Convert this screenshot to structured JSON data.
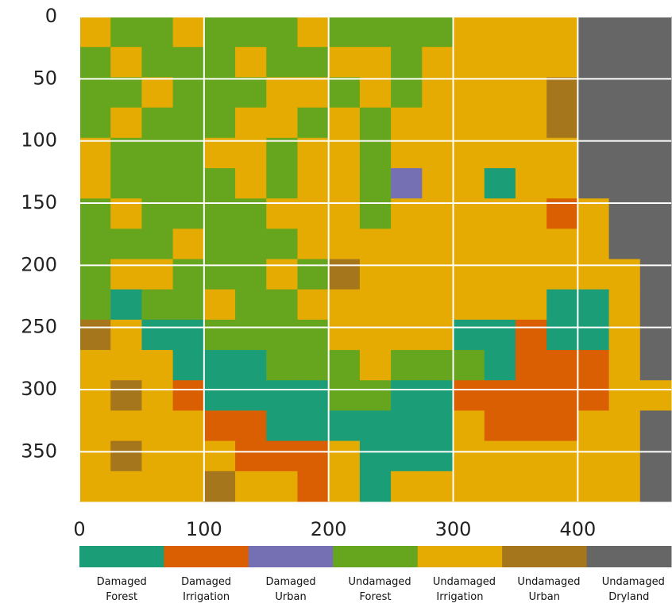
{
  "chart_data": {
    "type": "heatmap",
    "xlim": [
      0,
      475
    ],
    "ylim": [
      390,
      0
    ],
    "xticks": [
      0,
      100,
      200,
      300,
      400
    ],
    "yticks": [
      0,
      50,
      100,
      150,
      200,
      250,
      300,
      350
    ],
    "grid": true,
    "classes": [
      {
        "name": "Damaged Forest",
        "color": "#1b9e77"
      },
      {
        "name": "Damaged Irrigation",
        "color": "#d95f02"
      },
      {
        "name": "Damaged Urban",
        "color": "#7570b3"
      },
      {
        "name": "Undamaged Forest",
        "color": "#66a61e"
      },
      {
        "name": "Undamaged Irrigation",
        "color": "#e6ab02"
      },
      {
        "name": "Undamaged Urban",
        "color": "#a6761d"
      },
      {
        "name": "Undamaged Dryland",
        "color": "#666666"
      }
    ],
    "values": [
      [
        4,
        3,
        3,
        4,
        3,
        3,
        3,
        4,
        3,
        3,
        3,
        3,
        4,
        4,
        4,
        4,
        6,
        6,
        6
      ],
      [
        3,
        4,
        3,
        3,
        3,
        4,
        3,
        3,
        4,
        4,
        3,
        4,
        4,
        4,
        4,
        4,
        6,
        6,
        6
      ],
      [
        3,
        3,
        4,
        3,
        3,
        3,
        4,
        4,
        3,
        4,
        3,
        4,
        4,
        4,
        4,
        5,
        6,
        6,
        6
      ],
      [
        3,
        4,
        3,
        3,
        3,
        4,
        4,
        3,
        4,
        3,
        4,
        4,
        4,
        4,
        4,
        5,
        6,
        6,
        6
      ],
      [
        4,
        3,
        3,
        3,
        4,
        4,
        3,
        4,
        4,
        3,
        4,
        4,
        4,
        4,
        4,
        4,
        6,
        6,
        6
      ],
      [
        4,
        3,
        3,
        3,
        3,
        4,
        3,
        4,
        4,
        3,
        2,
        4,
        4,
        0,
        4,
        4,
        6,
        6,
        6
      ],
      [
        3,
        4,
        3,
        3,
        3,
        3,
        4,
        4,
        4,
        3,
        4,
        4,
        4,
        4,
        4,
        1,
        4,
        6,
        6
      ],
      [
        3,
        3,
        3,
        4,
        3,
        3,
        3,
        4,
        4,
        4,
        4,
        4,
        4,
        4,
        4,
        4,
        4,
        6,
        6
      ],
      [
        3,
        4,
        4,
        3,
        3,
        3,
        4,
        3,
        5,
        4,
        4,
        4,
        4,
        4,
        4,
        4,
        4,
        4,
        6
      ],
      [
        3,
        0,
        3,
        3,
        4,
        3,
        3,
        4,
        4,
        4,
        4,
        4,
        4,
        4,
        4,
        0,
        0,
        4,
        6
      ],
      [
        5,
        4,
        0,
        0,
        3,
        3,
        3,
        3,
        4,
        4,
        4,
        4,
        0,
        0,
        1,
        0,
        0,
        4,
        6
      ],
      [
        4,
        4,
        4,
        0,
        0,
        0,
        3,
        3,
        3,
        4,
        3,
        3,
        3,
        0,
        1,
        1,
        1,
        4,
        6
      ],
      [
        4,
        5,
        4,
        1,
        0,
        0,
        0,
        0,
        3,
        3,
        0,
        0,
        1,
        1,
        1,
        1,
        1,
        4,
        4
      ],
      [
        4,
        4,
        4,
        4,
        1,
        1,
        0,
        0,
        0,
        0,
        0,
        0,
        4,
        1,
        1,
        1,
        4,
        4,
        6
      ],
      [
        4,
        5,
        4,
        4,
        4,
        1,
        1,
        1,
        4,
        0,
        0,
        0,
        4,
        4,
        4,
        4,
        4,
        4,
        6
      ],
      [
        4,
        4,
        4,
        4,
        5,
        4,
        4,
        1,
        4,
        0,
        4,
        4,
        4,
        4,
        4,
        4,
        4,
        4,
        6
      ]
    ]
  }
}
